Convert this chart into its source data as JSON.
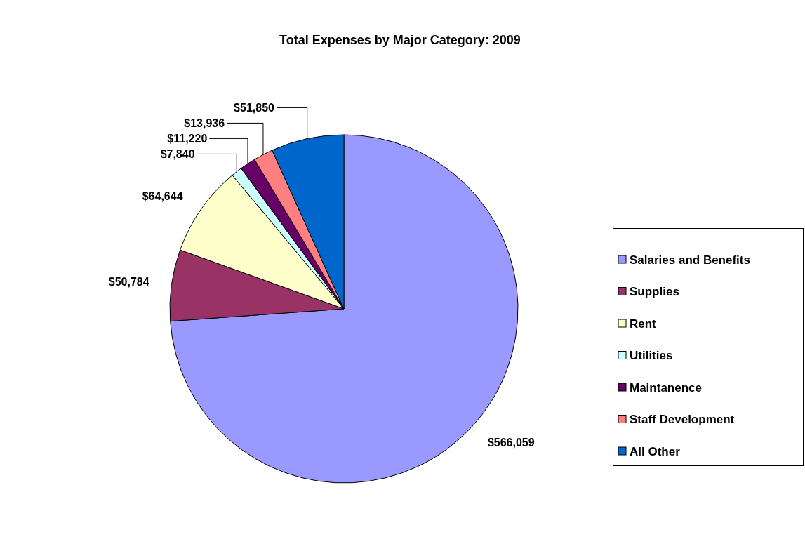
{
  "chart_data": {
    "type": "pie",
    "title": "Total Expenses by Major Category: 2009",
    "categories": [
      "Salaries and Benefits",
      "Supplies",
      "Rent",
      "Utilities",
      "Maintanence",
      "Staff Development",
      "All Other"
    ],
    "values": [
      566059,
      50784,
      64644,
      7840,
      11220,
      13936,
      51850
    ],
    "value_labels": [
      "$566,059",
      "$50,784",
      "$64,644",
      "$7,840",
      "$11,220",
      "$13,936",
      "$51,850"
    ],
    "colors": [
      "#9999ff",
      "#993366",
      "#ffffcc",
      "#ccffff",
      "#660066",
      "#ff8080",
      "#0066cc"
    ],
    "legend": "right"
  }
}
